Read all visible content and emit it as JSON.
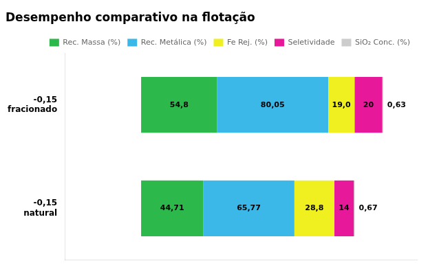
{
  "chart_data": {
    "type": "bar",
    "title": "Desempenho comparativo na flotação",
    "orientation": "horizontal",
    "stacked": true,
    "categories": [
      "-0,15\nfracionado",
      "-0,15\nnatural"
    ],
    "series": [
      {
        "name": "Rec. Massa (%)",
        "color": "#2db84b",
        "values": [
          54.8,
          44.71
        ],
        "value_labels": [
          "54,8",
          "44,71"
        ]
      },
      {
        "name": "Rec. Metálica (%)",
        "color": "#3bb8e8",
        "values": [
          80.05,
          65.77
        ],
        "value_labels": [
          "80,05",
          "65,77"
        ]
      },
      {
        "name": "Fe Rej. (%)",
        "color": "#f0f020",
        "values": [
          19.0,
          28.8
        ],
        "value_labels": [
          "19,0",
          "28,8"
        ]
      },
      {
        "name": "Seletividade",
        "color": "#e8189a",
        "values": [
          20,
          14
        ],
        "value_labels": [
          "20",
          "14"
        ]
      },
      {
        "name": "SiO₂ Conc. (%)",
        "color": "#cccccc",
        "values": [
          0.63,
          0.67
        ],
        "value_labels": [
          "0,63",
          "0,67"
        ]
      }
    ],
    "xlim": [
      -55,
      198.85
    ],
    "xticks": [],
    "grid": false,
    "legend": "upper right",
    "data_labels": true,
    "tick_labels": "y"
  }
}
